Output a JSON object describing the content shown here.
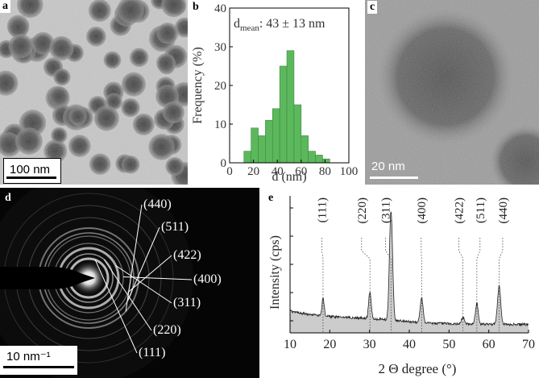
{
  "panels": {
    "a": {
      "label": "a",
      "scalebar": "100 nm"
    },
    "b": {
      "label": "b"
    },
    "c": {
      "label": "c",
      "scalebar": "20 nm"
    },
    "d": {
      "label": "d",
      "scalebar": "10 nm⁻¹",
      "rings": [
        "(440)",
        "(511)",
        "(422)",
        "(400)",
        "(311)",
        "(220)",
        "(111)"
      ]
    },
    "e": {
      "label": "e"
    }
  },
  "chart_data": [
    {
      "type": "bar",
      "panel": "b",
      "annotation": {
        "main": "d",
        "sub": "mean",
        "rest": ": 43 ± 13 nm"
      },
      "xlabel": "d (nm)",
      "ylabel": "Frequency (%)",
      "xlim": [
        0,
        100
      ],
      "ylim": [
        0,
        40
      ],
      "xticks": [
        0,
        20,
        40,
        60,
        80,
        100
      ],
      "yticks": [
        0,
        10,
        20,
        30,
        40
      ],
      "bin_width": 6,
      "x": [
        15,
        21,
        27,
        33,
        39,
        45,
        51,
        57,
        63,
        69,
        75,
        81
      ],
      "values": [
        3,
        9,
        7,
        11,
        14,
        25,
        29,
        15,
        7,
        3,
        2,
        1
      ],
      "bar_color": "#5cb85c"
    },
    {
      "type": "line",
      "panel": "e",
      "xlabel": "2 Θ degree (°)",
      "ylabel": "Intensity (cps)",
      "xlim": [
        10,
        70
      ],
      "xticks": [
        10,
        20,
        30,
        40,
        50,
        60,
        70
      ],
      "fill_color": "#cccccc",
      "peaks": [
        {
          "label": "(111)",
          "x": 18.3,
          "height": 0.13,
          "width": 0.4
        },
        {
          "label": "(220)",
          "x": 30.1,
          "height": 0.2,
          "width": 0.45
        },
        {
          "label": "(311)",
          "x": 35.4,
          "height": 0.8,
          "width": 0.55
        },
        {
          "label": "(400)",
          "x": 43.1,
          "height": 0.18,
          "width": 0.5
        },
        {
          "label": "(422)",
          "x": 53.5,
          "height": 0.05,
          "width": 0.5
        },
        {
          "label": "(511)",
          "x": 57.0,
          "height": 0.15,
          "width": 0.5
        },
        {
          "label": "(440)",
          "x": 62.6,
          "height": 0.28,
          "width": 0.55
        }
      ]
    }
  ]
}
